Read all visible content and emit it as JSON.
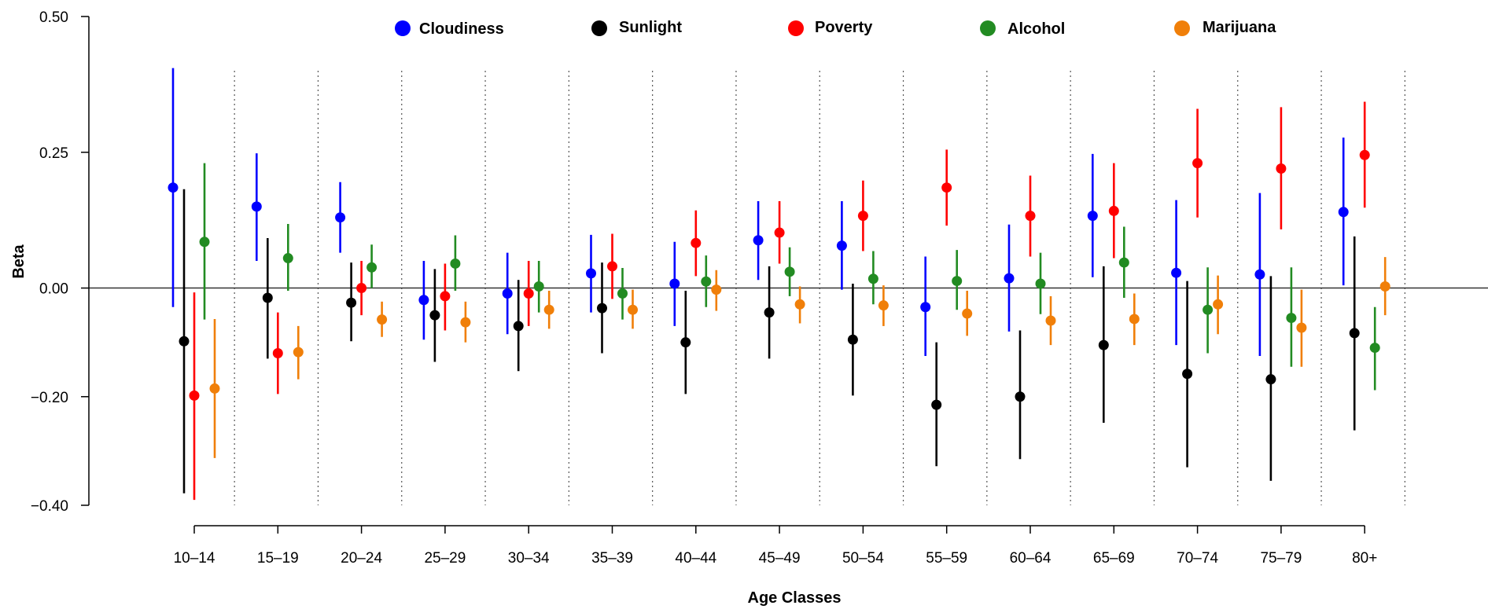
{
  "chart_data": {
    "type": "scatter",
    "xlabel": "Age Classes",
    "ylabel": "Beta",
    "y_ticks": [
      {
        "value": 0.5,
        "label": "0.50"
      },
      {
        "value": 0.25,
        "label": "0.25"
      },
      {
        "value": 0.0,
        "label": "0.00"
      },
      {
        "value": -0.2,
        "label": "−0.20"
      },
      {
        "value": -0.4,
        "label": "−0.40"
      }
    ],
    "ylim": [
      -0.4,
      0.5
    ],
    "categories": [
      "10–14",
      "15–19",
      "20–24",
      "25–29",
      "30–34",
      "35–39",
      "40–44",
      "45–49",
      "50–54",
      "55–59",
      "60–64",
      "65–69",
      "70–74",
      "75–79",
      "80+"
    ],
    "reference_line": 0.0,
    "legend_position": "top",
    "series": [
      {
        "name": "Cloudiness",
        "color": "#0000ff",
        "values": [
          0.185,
          0.15,
          0.13,
          -0.022,
          -0.01,
          0.027,
          0.008,
          0.088,
          0.078,
          -0.035,
          0.018,
          0.133,
          0.028,
          0.025,
          0.14
        ],
        "lower": [
          -0.035,
          0.05,
          0.065,
          -0.095,
          -0.085,
          -0.045,
          -0.07,
          0.015,
          -0.003,
          -0.125,
          -0.08,
          0.02,
          -0.105,
          -0.125,
          0.005
        ],
        "upper": [
          0.405,
          0.248,
          0.195,
          0.05,
          0.065,
          0.098,
          0.085,
          0.16,
          0.16,
          0.058,
          0.117,
          0.247,
          0.162,
          0.175,
          0.277
        ]
      },
      {
        "name": "Sunlight",
        "color": "#000000",
        "values": [
          -0.098,
          -0.018,
          -0.027,
          -0.05,
          -0.07,
          -0.037,
          -0.1,
          -0.045,
          -0.095,
          -0.215,
          -0.2,
          -0.105,
          -0.158,
          -0.168,
          -0.083
        ],
        "lower": [
          -0.378,
          -0.13,
          -0.098,
          -0.136,
          -0.153,
          -0.12,
          -0.195,
          -0.13,
          -0.198,
          -0.328,
          -0.315,
          -0.248,
          -0.33,
          -0.355,
          -0.262
        ],
        "upper": [
          0.182,
          0.092,
          0.047,
          0.035,
          0.015,
          0.047,
          -0.005,
          0.04,
          0.008,
          -0.1,
          -0.078,
          0.04,
          0.013,
          0.022,
          0.095
        ]
      },
      {
        "name": "Poverty",
        "color": "#ff0000",
        "values": [
          -0.198,
          -0.12,
          0.0,
          -0.015,
          -0.01,
          0.04,
          0.083,
          0.102,
          0.133,
          0.185,
          0.133,
          0.142,
          0.23,
          0.22,
          0.245
        ],
        "lower": [
          -0.39,
          -0.195,
          -0.05,
          -0.078,
          -0.07,
          -0.02,
          0.022,
          0.045,
          0.068,
          0.115,
          0.058,
          0.055,
          0.13,
          0.108,
          0.148
        ],
        "upper": [
          -0.008,
          -0.045,
          0.05,
          0.045,
          0.05,
          0.1,
          0.143,
          0.16,
          0.198,
          0.255,
          0.207,
          0.23,
          0.33,
          0.333,
          0.343
        ]
      },
      {
        "name": "Alcohol",
        "color": "#228b22",
        "values": [
          0.085,
          0.055,
          0.038,
          0.045,
          0.003,
          -0.01,
          0.012,
          0.03,
          0.017,
          0.013,
          0.008,
          0.047,
          -0.04,
          -0.055,
          -0.11
        ],
        "lower": [
          -0.058,
          -0.005,
          0.0,
          -0.005,
          -0.045,
          -0.058,
          -0.035,
          -0.015,
          -0.03,
          -0.04,
          -0.048,
          -0.018,
          -0.12,
          -0.145,
          -0.188
        ],
        "upper": [
          0.23,
          0.118,
          0.08,
          0.097,
          0.05,
          0.037,
          0.06,
          0.075,
          0.068,
          0.07,
          0.065,
          0.113,
          0.038,
          0.038,
          -0.035
        ]
      },
      {
        "name": "Marijuana",
        "color": "#f07f09",
        "values": [
          -0.185,
          -0.118,
          -0.058,
          -0.063,
          -0.04,
          -0.04,
          -0.003,
          -0.03,
          -0.032,
          -0.047,
          -0.06,
          -0.057,
          -0.03,
          -0.073,
          0.003
        ],
        "lower": [
          -0.313,
          -0.168,
          -0.09,
          -0.1,
          -0.075,
          -0.075,
          -0.042,
          -0.065,
          -0.07,
          -0.088,
          -0.105,
          -0.105,
          -0.085,
          -0.145,
          -0.05
        ],
        "upper": [
          -0.057,
          -0.07,
          -0.025,
          -0.025,
          -0.005,
          -0.003,
          0.033,
          0.003,
          0.005,
          -0.005,
          -0.015,
          -0.01,
          0.023,
          -0.003,
          0.057
        ]
      }
    ]
  }
}
